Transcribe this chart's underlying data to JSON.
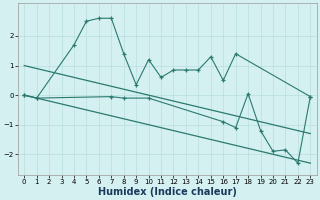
{
  "xlabel": "Humidex (Indice chaleur)",
  "bg_color": "#d5f0f0",
  "line_color": "#2a7a70",
  "grid_color": "#b8dede",
  "series1_x": [
    0,
    1,
    4,
    5,
    6,
    7,
    8,
    9,
    10,
    11,
    12,
    13,
    14,
    15,
    16,
    17,
    23
  ],
  "series1_y": [
    0.0,
    -0.1,
    1.7,
    2.5,
    2.6,
    2.6,
    1.4,
    0.35,
    1.2,
    0.6,
    0.85,
    0.85,
    0.85,
    1.3,
    0.5,
    1.4,
    -0.05
  ],
  "series2_x": [
    0,
    1,
    7,
    8,
    10,
    16,
    17,
    18,
    19,
    20,
    21,
    22,
    23
  ],
  "series2_y": [
    0.0,
    -0.1,
    -0.05,
    -0.1,
    -0.1,
    -0.9,
    -1.1,
    0.05,
    -1.2,
    -1.9,
    -1.85,
    -2.3,
    -0.05
  ],
  "trend1_x": [
    0,
    23
  ],
  "trend1_y": [
    1.0,
    -1.3
  ],
  "trend2_x": [
    0,
    23
  ],
  "trend2_y": [
    0.0,
    -2.3
  ],
  "ylim": [
    -2.7,
    3.1
  ],
  "xlim": [
    -0.5,
    23.5
  ],
  "yticks": [
    -2,
    -1,
    0,
    1,
    2
  ],
  "xticks": [
    0,
    1,
    2,
    3,
    4,
    5,
    6,
    7,
    8,
    9,
    10,
    11,
    12,
    13,
    14,
    15,
    16,
    17,
    18,
    19,
    20,
    21,
    22,
    23
  ],
  "xlabel_color": "#1a3a5c",
  "xlabel_fontsize": 7
}
